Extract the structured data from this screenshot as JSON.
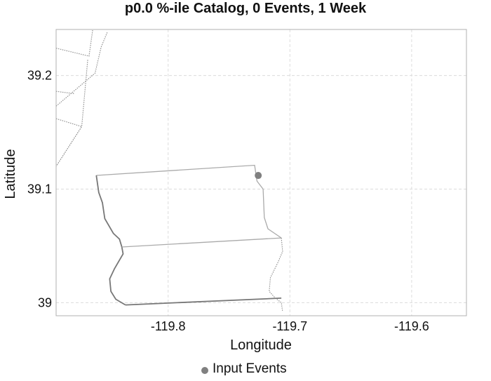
{
  "chart_data": {
    "type": "scatter",
    "title": "p0.0 %-ile Catalog, 0 Events, 1 Week",
    "xlabel": "Longitude",
    "ylabel": "Latitude",
    "xlim": [
      -119.892,
      -119.555
    ],
    "ylim": [
      38.9885,
      39.2405
    ],
    "x_ticks": [
      -119.8,
      -119.7,
      -119.6
    ],
    "x_tick_labels": [
      "-119.8",
      "-119.7",
      "-119.6"
    ],
    "y_ticks": [
      39.0,
      39.1,
      39.2
    ],
    "y_tick_labels": [
      "39",
      "39.1",
      "39.2"
    ],
    "grid": true,
    "legend": {
      "position": "bottom",
      "entries": [
        "Input Events"
      ]
    },
    "colors": {
      "points": "#808080",
      "boundary_dark": "#777777",
      "boundary_light": "#aaaaaa",
      "boundary_dotted": "#888888"
    },
    "series": [
      {
        "name": "Input Events",
        "points": [
          {
            "x": -119.726,
            "y": 39.112
          }
        ]
      }
    ],
    "boundaries": [
      {
        "style": "dotted",
        "points": [
          [
            -119.892,
            39.173
          ],
          [
            -119.86,
            39.202
          ],
          [
            -119.855,
            39.225
          ],
          [
            -119.85,
            39.238
          ]
        ]
      },
      {
        "style": "dotted",
        "points": [
          [
            -119.892,
            39.224
          ],
          [
            -119.865,
            39.217
          ],
          [
            -119.862,
            39.24
          ]
        ]
      },
      {
        "style": "dotted",
        "points": [
          [
            -119.892,
            39.186
          ],
          [
            -119.877,
            39.184
          ]
        ]
      },
      {
        "style": "dotted",
        "points": [
          [
            -119.892,
            39.162
          ],
          [
            -119.871,
            39.155
          ],
          [
            -119.892,
            39.12
          ],
          [
            -119.871,
            39.155
          ],
          [
            -119.866,
            39.214
          ]
        ]
      },
      {
        "style": "light",
        "points": [
          [
            -119.859,
            39.112
          ],
          [
            -119.729,
            39.121
          ],
          [
            -119.727,
            39.107
          ],
          [
            -119.722,
            39.1
          ],
          [
            -119.721,
            39.075
          ],
          [
            -119.718,
            39.065
          ],
          [
            -119.707,
            39.057
          ]
        ]
      },
      {
        "style": "dark",
        "points": [
          [
            -119.859,
            39.112
          ],
          [
            -119.857,
            39.097
          ],
          [
            -119.854,
            39.088
          ],
          [
            -119.852,
            39.074
          ],
          [
            -119.845,
            39.061
          ],
          [
            -119.84,
            39.056
          ],
          [
            -119.838,
            39.049
          ],
          [
            -119.837,
            39.043
          ],
          [
            -119.844,
            39.03
          ],
          [
            -119.848,
            39.021
          ],
          [
            -119.847,
            39.01
          ],
          [
            -119.843,
            39.003
          ],
          [
            -119.835,
            38.998
          ]
        ]
      },
      {
        "style": "light",
        "points": [
          [
            -119.838,
            39.049
          ],
          [
            -119.707,
            39.057
          ]
        ]
      },
      {
        "style": "dotted",
        "points": [
          [
            -119.707,
            39.057
          ],
          [
            -119.706,
            39.045
          ],
          [
            -119.71,
            39.035
          ],
          [
            -119.716,
            39.022
          ],
          [
            -119.717,
            39.01
          ],
          [
            -119.712,
            39.004
          ],
          [
            -119.707,
            39.0
          ],
          [
            -119.706,
            38.992
          ]
        ]
      },
      {
        "style": "dark",
        "points": [
          [
            -119.835,
            38.998
          ],
          [
            -119.707,
            39.004
          ]
        ]
      }
    ]
  }
}
